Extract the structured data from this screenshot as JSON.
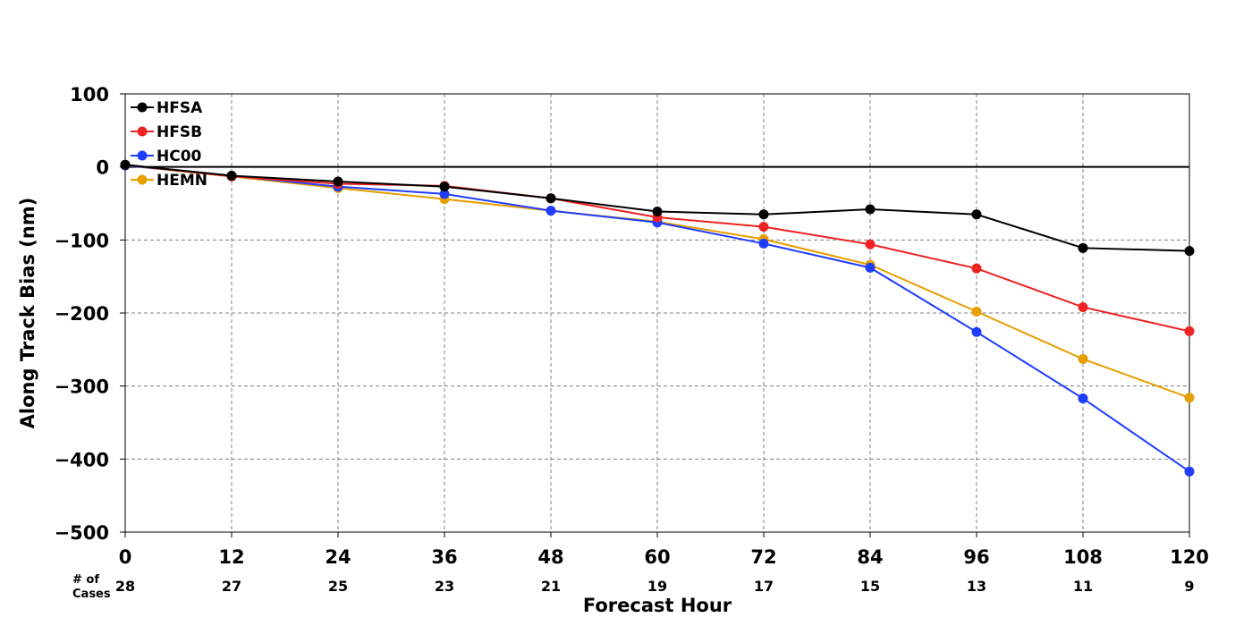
{
  "chart_data": {
    "type": "line",
    "title": "",
    "xlabel": "Forecast Hour",
    "ylabel": "Along Track Bias (nm)",
    "xlim": [
      0,
      120
    ],
    "ylim": [
      -500,
      100
    ],
    "x": [
      0,
      12,
      24,
      36,
      48,
      60,
      72,
      84,
      96,
      108,
      120
    ],
    "xticks": [
      "0",
      "12",
      "24",
      "36",
      "48",
      "60",
      "72",
      "84",
      "96",
      "108",
      "120"
    ],
    "yticks": [
      100,
      0,
      -100,
      -200,
      -300,
      -400,
      -500
    ],
    "ytick_labels": [
      "100",
      "0",
      "−100",
      "−200",
      "−300",
      "−400",
      "−500"
    ],
    "grid": true,
    "legend_position": "top-left",
    "zero_line": 0,
    "cases_label_line1": "# of",
    "cases_label_line2": "Cases",
    "cases": [
      "28",
      "27",
      "25",
      "23",
      "21",
      "19",
      "17",
      "15",
      "13",
      "11",
      "9"
    ],
    "series": [
      {
        "name": "HEMN",
        "color": "#e69f00",
        "values": [
          2,
          -13,
          -29,
          -44,
          -60,
          -75,
          -99,
          -134,
          -198,
          -263,
          -316
        ]
      },
      {
        "name": "HC00",
        "color": "#1f3dff",
        "values": [
          2,
          -12,
          -27,
          -37,
          -60,
          -76,
          -105,
          -138,
          -226,
          -317,
          -417
        ]
      },
      {
        "name": "HFSB",
        "color": "#ee2222",
        "values": [
          3,
          -13,
          -23,
          -26,
          -43,
          -69,
          -82,
          -106,
          -139,
          -192,
          -225
        ]
      },
      {
        "name": "HFSA",
        "color": "#000000",
        "values": [
          3,
          -12,
          -20,
          -27,
          -43,
          -61,
          -65,
          -58,
          -65,
          -111,
          -115
        ]
      }
    ],
    "legend_order": [
      "HFSA",
      "HFSB",
      "HC00",
      "HEMN"
    ]
  }
}
